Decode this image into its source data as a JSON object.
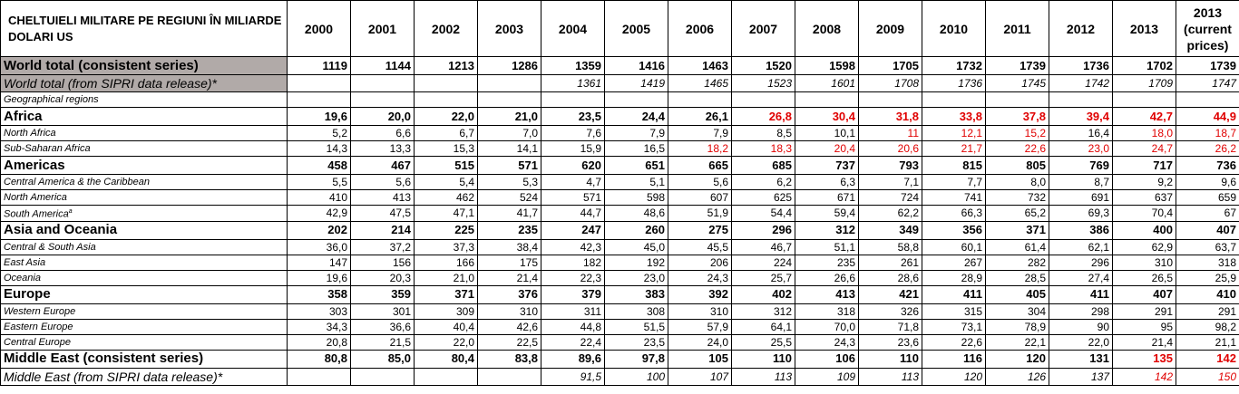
{
  "table": {
    "title": "CHELTUIELI MILITARE PE REGIUNI ÎN MILIARDE DOLARI US",
    "columns": [
      "2000",
      "2001",
      "2002",
      "2003",
      "2004",
      "2005",
      "2006",
      "2007",
      "2008",
      "2009",
      "2010",
      "2011",
      "2012",
      "2013",
      "2013 (current prices)"
    ],
    "rows": [
      {
        "label": "World total (consistent series)",
        "style": "world",
        "cells": [
          "1119",
          "1144",
          "1213",
          "1286",
          "1359",
          "1416",
          "1463",
          "1520",
          "1598",
          "1705",
          "1732",
          "1739",
          "1736",
          "1702",
          "1739"
        ],
        "red": []
      },
      {
        "label": "World total (from SIPRI data release)*",
        "style": "world-release",
        "cells": [
          null,
          null,
          null,
          null,
          "1361",
          "1419",
          "1465",
          "1523",
          "1601",
          "1708",
          "1736",
          "1745",
          "1742",
          "1709",
          "1747"
        ],
        "red": []
      },
      {
        "label": "Geographical regions",
        "style": "note",
        "cells": [
          null,
          null,
          null,
          null,
          null,
          null,
          null,
          null,
          null,
          null,
          null,
          null,
          null,
          null,
          null
        ],
        "red": []
      },
      {
        "label": "Africa",
        "style": "major",
        "cells": [
          "19,6",
          "20,0",
          "22,0",
          "21,0",
          "23,5",
          "24,4",
          "26,1",
          "26,8",
          "30,4",
          "31,8",
          "33,8",
          "37,8",
          "39,4",
          "42,7",
          "44,9"
        ],
        "red": [
          7,
          8,
          9,
          10,
          11,
          12,
          13,
          14
        ]
      },
      {
        "label": "North Africa",
        "style": "sub",
        "cells": [
          "5,2",
          "6,6",
          "6,7",
          "7,0",
          "7,6",
          "7,9",
          "7,9",
          "8,5",
          "10,1",
          "11",
          "12,1",
          "15,2",
          "16,4",
          "18,0",
          "18,7"
        ],
        "red": [
          9,
          10,
          11,
          13,
          14
        ]
      },
      {
        "label": "Sub-Saharan Africa",
        "style": "sub",
        "cells": [
          "14,3",
          "13,3",
          "15,3",
          "14,1",
          "15,9",
          "16,5",
          "18,2",
          "18,3",
          "20,4",
          "20,6",
          "21,7",
          "22,6",
          "23,0",
          "24,7",
          "26,2"
        ],
        "red": [
          6,
          7,
          8,
          9,
          10,
          11,
          12,
          13,
          14
        ]
      },
      {
        "label": "Americas",
        "style": "major",
        "cells": [
          "458",
          "467",
          "515",
          "571",
          "620",
          "651",
          "665",
          "685",
          "737",
          "793",
          "815",
          "805",
          "769",
          "717",
          "736"
        ],
        "red": []
      },
      {
        "label": "Central America & the Caribbean",
        "style": "sub",
        "cells": [
          "5,5",
          "5,6",
          "5,4",
          "5,3",
          "4,7",
          "5,1",
          "5,6",
          "6,2",
          "6,3",
          "7,1",
          "7,7",
          "8,0",
          "8,7",
          "9,2",
          "9,6"
        ],
        "red": []
      },
      {
        "label": "North America",
        "style": "sub",
        "cells": [
          "410",
          "413",
          "462",
          "524",
          "571",
          "598",
          "607",
          "625",
          "671",
          "724",
          "741",
          "732",
          "691",
          "637",
          "659"
        ],
        "red": []
      },
      {
        "label": "South America",
        "sup": "a",
        "style": "sub",
        "cells": [
          "42,9",
          "47,5",
          "47,1",
          "41,7",
          "44,7",
          "48,6",
          "51,9",
          "54,4",
          "59,4",
          "62,2",
          "66,3",
          "65,2",
          "69,3",
          "70,4",
          "67"
        ],
        "red": []
      },
      {
        "label": "Asia and Oceania",
        "style": "major",
        "cells": [
          "202",
          "214",
          "225",
          "235",
          "247",
          "260",
          "275",
          "296",
          "312",
          "349",
          "356",
          "371",
          "386",
          "400",
          "407"
        ],
        "red": []
      },
      {
        "label": "Central & South Asia",
        "style": "sub",
        "cells": [
          "36,0",
          "37,2",
          "37,3",
          "38,4",
          "42,3",
          "45,0",
          "45,5",
          "46,7",
          "51,1",
          "58,8",
          "60,1",
          "61,4",
          "62,1",
          "62,9",
          "63,7"
        ],
        "red": []
      },
      {
        "label": "East Asia",
        "style": "sub",
        "cells": [
          "147",
          "156",
          "166",
          "175",
          "182",
          "192",
          "206",
          "224",
          "235",
          "261",
          "267",
          "282",
          "296",
          "310",
          "318"
        ],
        "red": []
      },
      {
        "label": "Oceania",
        "style": "sub",
        "cells": [
          "19,6",
          "20,3",
          "21,0",
          "21,4",
          "22,3",
          "23,0",
          "24,3",
          "25,7",
          "26,6",
          "28,6",
          "28,9",
          "28,5",
          "27,4",
          "26,5",
          "25,9"
        ],
        "red": []
      },
      {
        "label": "Europe",
        "style": "major",
        "cells": [
          "358",
          "359",
          "371",
          "376",
          "379",
          "383",
          "392",
          "402",
          "413",
          "421",
          "411",
          "405",
          "411",
          "407",
          "410"
        ],
        "red": []
      },
      {
        "label": "Western Europe",
        "style": "sub",
        "cells": [
          "303",
          "301",
          "309",
          "310",
          "311",
          "308",
          "310",
          "312",
          "318",
          "326",
          "315",
          "304",
          "298",
          "291",
          "291"
        ],
        "red": []
      },
      {
        "label": "Eastern Europe",
        "style": "sub",
        "cells": [
          "34,3",
          "36,6",
          "40,4",
          "42,6",
          "44,8",
          "51,5",
          "57,9",
          "64,1",
          "70,0",
          "71,8",
          "73,1",
          "78,9",
          "90",
          "95",
          "98,2"
        ],
        "red": []
      },
      {
        "label": "Central Europe",
        "style": "sub",
        "cells": [
          "20,8",
          "21,5",
          "22,0",
          "22,5",
          "22,4",
          "23,5",
          "24,0",
          "25,5",
          "24,3",
          "23,6",
          "22,6",
          "22,1",
          "22,0",
          "21,4",
          "21,1"
        ],
        "red": []
      },
      {
        "label": "Middle East (consistent series)",
        "style": "major",
        "cells": [
          "80,8",
          "85,0",
          "80,4",
          "83,8",
          "89,6",
          "97,8",
          "105",
          "110",
          "106",
          "110",
          "116",
          "120",
          "131",
          "135",
          "142"
        ],
        "red": [
          13,
          14
        ]
      },
      {
        "label": "Middle East (from SIPRI data release)*",
        "style": "release",
        "cells": [
          null,
          null,
          null,
          null,
          "91,5",
          "100",
          "107",
          "113",
          "109",
          "113",
          "120",
          "126",
          "137",
          "142",
          "150"
        ],
        "red": [
          13,
          14
        ]
      }
    ]
  }
}
